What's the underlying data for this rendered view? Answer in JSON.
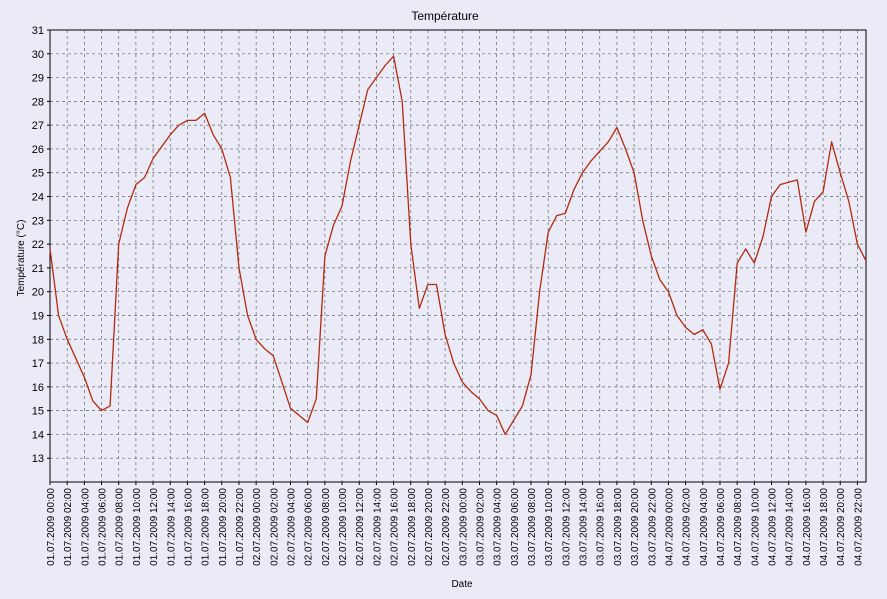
{
  "chart_data": {
    "type": "line",
    "title": "Température",
    "xlabel": "Date",
    "ylabel": "Température (°C)",
    "ylim": [
      12,
      31
    ],
    "yticks": [
      13,
      14,
      15,
      16,
      17,
      18,
      19,
      20,
      21,
      22,
      23,
      24,
      25,
      26,
      27,
      28,
      29,
      30,
      31
    ],
    "xlim": [
      "01.07.2009 00:00",
      "04.07.2009 23:00"
    ],
    "xtick_labels": [
      "01.07.2009 00:00",
      "01.07.2009 02:00",
      "01.07.2009 04:00",
      "01.07.2009 06:00",
      "01.07.2009 08:00",
      "01.07.2009 10:00",
      "01.07.2009 12:00",
      "01.07.2009 14:00",
      "01.07.2009 16:00",
      "01.07.2009 18:00",
      "01.07.2009 20:00",
      "01.07.2009 22:00",
      "02.07.2009 00:00",
      "02.07.2009 02:00",
      "02.07.2009 04:00",
      "02.07.2009 06:00",
      "02.07.2009 08:00",
      "02.07.2009 10:00",
      "02.07.2009 12:00",
      "02.07.2009 14:00",
      "02.07.2009 16:00",
      "02.07.2009 18:00",
      "02.07.2009 20:00",
      "02.07.2009 22:00",
      "03.07.2009 00:00",
      "03.07.2009 02:00",
      "03.07.2009 04:00",
      "03.07.2009 06:00",
      "03.07.2009 08:00",
      "03.07.2009 10:00",
      "03.07.2009 12:00",
      "03.07.2009 14:00",
      "03.07.2009 16:00",
      "03.07.2009 18:00",
      "03.07.2009 20:00",
      "03.07.2009 22:00",
      "04.07.2009 00:00",
      "04.07.2009 02:00",
      "04.07.2009 04:00",
      "04.07.2009 06:00",
      "04.07.2009 08:00",
      "04.07.2009 10:00",
      "04.07.2009 12:00",
      "04.07.2009 14:00",
      "04.07.2009 16:00",
      "04.07.2009 18:00",
      "04.07.2009 20:00",
      "04.07.2009 22:00"
    ],
    "grid": true,
    "series_color": "#b22a0e",
    "series": [
      {
        "points": [
          [
            "01.07.2009 00:00",
            21.8
          ],
          [
            "01.07.2009 01:00",
            19.0
          ],
          [
            "01.07.2009 02:00",
            18.0
          ],
          [
            "01.07.2009 03:00",
            17.2
          ],
          [
            "01.07.2009 04:00",
            16.4
          ],
          [
            "01.07.2009 05:00",
            15.4
          ],
          [
            "01.07.2009 06:00",
            15.0
          ],
          [
            "01.07.2009 07:00",
            15.2
          ],
          [
            "01.07.2009 08:00",
            22.0
          ],
          [
            "01.07.2009 09:00",
            23.5
          ],
          [
            "01.07.2009 10:00",
            24.5
          ],
          [
            "01.07.2009 11:00",
            24.8
          ],
          [
            "01.07.2009 12:00",
            25.6
          ],
          [
            "01.07.2009 13:00",
            26.1
          ],
          [
            "01.07.2009 14:00",
            26.6
          ],
          [
            "01.07.2009 15:00",
            27.0
          ],
          [
            "01.07.2009 16:00",
            27.2
          ],
          [
            "01.07.2009 17:00",
            27.2
          ],
          [
            "01.07.2009 18:00",
            27.5
          ],
          [
            "01.07.2009 19:00",
            26.6
          ],
          [
            "01.07.2009 20:00",
            26.0
          ],
          [
            "01.07.2009 21:00",
            24.8
          ],
          [
            "01.07.2009 22:00",
            21.0
          ],
          [
            "01.07.2009 23:00",
            19.0
          ],
          [
            "02.07.2009 00:00",
            18.0
          ],
          [
            "02.07.2009 01:00",
            17.6
          ],
          [
            "02.07.2009 02:00",
            17.3
          ],
          [
            "02.07.2009 03:00",
            16.2
          ],
          [
            "02.07.2009 04:00",
            15.1
          ],
          [
            "02.07.2009 05:00",
            14.8
          ],
          [
            "02.07.2009 06:00",
            14.5
          ],
          [
            "02.07.2009 07:00",
            15.5
          ],
          [
            "02.07.2009 08:00",
            21.5
          ],
          [
            "02.07.2009 09:00",
            22.8
          ],
          [
            "02.07.2009 10:00",
            23.6
          ],
          [
            "02.07.2009 11:00",
            25.5
          ],
          [
            "02.07.2009 12:00",
            27.0
          ],
          [
            "02.07.2009 13:00",
            28.5
          ],
          [
            "02.07.2009 14:00",
            29.0
          ],
          [
            "02.07.2009 15:00",
            29.5
          ],
          [
            "02.07.2009 16:00",
            29.9
          ],
          [
            "02.07.2009 17:00",
            28.0
          ],
          [
            "02.07.2009 18:00",
            22.0
          ],
          [
            "02.07.2009 19:00",
            19.3
          ],
          [
            "02.07.2009 20:00",
            20.3
          ],
          [
            "02.07.2009 21:00",
            20.3
          ],
          [
            "02.07.2009 22:00",
            18.2
          ],
          [
            "02.07.2009 23:00",
            17.0
          ],
          [
            "03.07.2009 00:00",
            16.2
          ],
          [
            "03.07.2009 01:00",
            15.8
          ],
          [
            "03.07.2009 02:00",
            15.5
          ],
          [
            "03.07.2009 03:00",
            15.0
          ],
          [
            "03.07.2009 04:00",
            14.8
          ],
          [
            "03.07.2009 05:00",
            14.0
          ],
          [
            "03.07.2009 06:00",
            14.6
          ],
          [
            "03.07.2009 07:00",
            15.2
          ],
          [
            "03.07.2009 08:00",
            16.5
          ],
          [
            "03.07.2009 09:00",
            20.0
          ],
          [
            "03.07.2009 10:00",
            22.5
          ],
          [
            "03.07.2009 11:00",
            23.2
          ],
          [
            "03.07.2009 12:00",
            23.3
          ],
          [
            "03.07.2009 13:00",
            24.3
          ],
          [
            "03.07.2009 14:00",
            25.0
          ],
          [
            "03.07.2009 15:00",
            25.5
          ],
          [
            "03.07.2009 16:00",
            25.9
          ],
          [
            "03.07.2009 17:00",
            26.3
          ],
          [
            "03.07.2009 18:00",
            26.9
          ],
          [
            "03.07.2009 19:00",
            26.0
          ],
          [
            "03.07.2009 20:00",
            25.0
          ],
          [
            "03.07.2009 21:00",
            23.0
          ],
          [
            "03.07.2009 22:00",
            21.5
          ],
          [
            "03.07.2009 23:00",
            20.5
          ],
          [
            "04.07.2009 00:00",
            20.0
          ],
          [
            "04.07.2009 01:00",
            19.0
          ],
          [
            "04.07.2009 02:00",
            18.5
          ],
          [
            "04.07.2009 03:00",
            18.2
          ],
          [
            "04.07.2009 04:00",
            18.4
          ],
          [
            "04.07.2009 05:00",
            17.8
          ],
          [
            "04.07.2009 06:00",
            15.9
          ],
          [
            "04.07.2009 07:00",
            17.0
          ],
          [
            "04.07.2009 08:00",
            21.2
          ],
          [
            "04.07.2009 09:00",
            21.8
          ],
          [
            "04.07.2009 10:00",
            21.2
          ],
          [
            "04.07.2009 11:00",
            22.3
          ],
          [
            "04.07.2009 12:00",
            24.0
          ],
          [
            "04.07.2009 13:00",
            24.5
          ],
          [
            "04.07.2009 14:00",
            24.6
          ],
          [
            "04.07.2009 15:00",
            24.7
          ],
          [
            "04.07.2009 16:00",
            22.5
          ],
          [
            "04.07.2009 17:00",
            23.8
          ],
          [
            "04.07.2009 18:00",
            24.2
          ],
          [
            "04.07.2009 19:00",
            26.3
          ],
          [
            "04.07.2009 20:00",
            25.0
          ],
          [
            "04.07.2009 21:00",
            23.8
          ],
          [
            "04.07.2009 22:00",
            22.0
          ],
          [
            "04.07.2009 23:00",
            21.3
          ]
        ]
      }
    ]
  }
}
